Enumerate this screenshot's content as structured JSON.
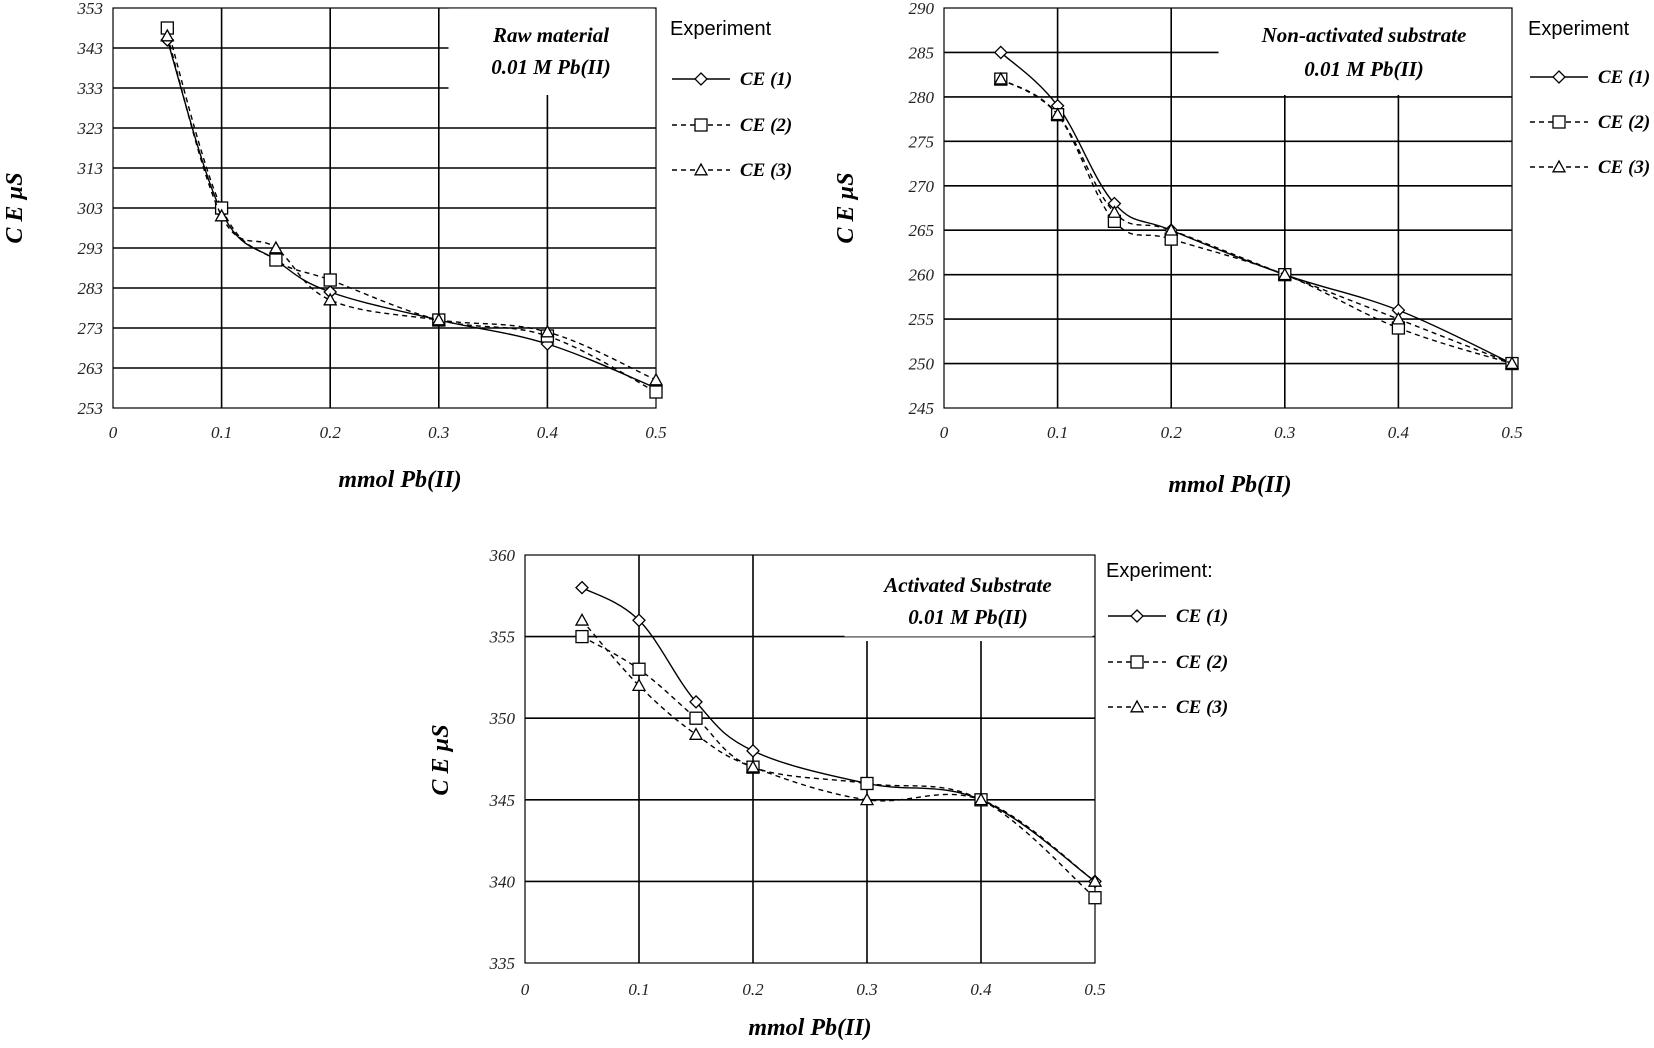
{
  "chart_data": [
    {
      "type": "line",
      "title_lines": [
        "Raw material",
        "0.01 M Pb(II)"
      ],
      "xlabel": "mmol Pb(II)",
      "ylabel": "C E  µS",
      "xlim": [
        0,
        0.5
      ],
      "ylim": [
        253,
        353
      ],
      "xticks": [
        0,
        0.1,
        0.2,
        0.3,
        0.4,
        0.5
      ],
      "yticks": [
        253,
        263,
        273,
        283,
        293,
        303,
        313,
        323,
        333,
        343,
        353
      ],
      "legend_title": "Experiment",
      "legend_position": "right",
      "grid": true,
      "series": [
        {
          "name": "CE (1)",
          "marker": "diamond",
          "line": "solid",
          "x": [
            0.05,
            0.1,
            0.15,
            0.2,
            0.3,
            0.4,
            0.5
          ],
          "y": [
            345,
            302,
            290,
            282,
            275,
            269,
            258
          ]
        },
        {
          "name": "CE (2)",
          "marker": "square",
          "line": "dashed",
          "x": [
            0.05,
            0.1,
            0.15,
            0.2,
            0.3,
            0.4,
            0.5
          ],
          "y": [
            348,
            303,
            290,
            285,
            275,
            271,
            257
          ]
        },
        {
          "name": "CE (3)",
          "marker": "triangle",
          "line": "dashed",
          "x": [
            0.05,
            0.1,
            0.15,
            0.2,
            0.3,
            0.4,
            0.5
          ],
          "y": [
            346,
            301,
            293,
            280,
            275,
            272,
            260
          ]
        }
      ]
    },
    {
      "type": "line",
      "title_lines": [
        "Non-activated substrate",
        "0.01 M Pb(II)"
      ],
      "xlabel": "mmol Pb(II)",
      "ylabel": "C E  µS",
      "xlim": [
        0,
        0.5
      ],
      "ylim": [
        245,
        290
      ],
      "xticks": [
        0,
        0.1,
        0.2,
        0.3,
        0.4,
        0.5
      ],
      "yticks": [
        245,
        250,
        255,
        260,
        265,
        270,
        275,
        280,
        285,
        290
      ],
      "legend_title": "Experiment",
      "legend_position": "right",
      "grid": true,
      "series": [
        {
          "name": "CE (1)",
          "marker": "diamond",
          "line": "solid",
          "x": [
            0.05,
            0.1,
            0.15,
            0.2,
            0.3,
            0.4,
            0.5
          ],
          "y": [
            285,
            279,
            268,
            265,
            260,
            256,
            250
          ]
        },
        {
          "name": "CE (2)",
          "marker": "square",
          "line": "dashed",
          "x": [
            0.05,
            0.1,
            0.15,
            0.2,
            0.3,
            0.4,
            0.5
          ],
          "y": [
            282,
            278,
            266,
            264,
            260,
            254,
            250
          ]
        },
        {
          "name": "CE (3)",
          "marker": "triangle",
          "line": "dashed",
          "x": [
            0.05,
            0.1,
            0.15,
            0.2,
            0.3,
            0.4,
            0.5
          ],
          "y": [
            282,
            278,
            267,
            265,
            260,
            255,
            250
          ]
        }
      ]
    },
    {
      "type": "line",
      "title_lines": [
        "Activated Substrate",
        "0.01 M Pb(II)"
      ],
      "xlabel": "mmol Pb(II)",
      "ylabel": "C E  µS",
      "xlim": [
        0,
        0.5
      ],
      "ylim": [
        335,
        360
      ],
      "xticks": [
        0,
        0.1,
        0.2,
        0.3,
        0.4,
        0.5
      ],
      "yticks": [
        335,
        340,
        345,
        350,
        355,
        360
      ],
      "legend_title": "Experiment:",
      "legend_position": "right",
      "grid": true,
      "series": [
        {
          "name": "CE (1)",
          "marker": "diamond",
          "line": "solid",
          "x": [
            0.05,
            0.1,
            0.15,
            0.2,
            0.3,
            0.4,
            0.5
          ],
          "y": [
            358,
            356,
            351,
            348,
            346,
            345,
            340
          ]
        },
        {
          "name": "CE (2)",
          "marker": "square",
          "line": "dashed",
          "x": [
            0.05,
            0.1,
            0.15,
            0.2,
            0.3,
            0.4,
            0.5
          ],
          "y": [
            355,
            353,
            350,
            347,
            346,
            345,
            339
          ]
        },
        {
          "name": "CE (3)",
          "marker": "triangle",
          "line": "dashed",
          "x": [
            0.05,
            0.1,
            0.15,
            0.2,
            0.3,
            0.4,
            0.5
          ],
          "y": [
            356,
            352,
            349,
            347,
            345,
            345,
            340
          ]
        }
      ]
    }
  ]
}
